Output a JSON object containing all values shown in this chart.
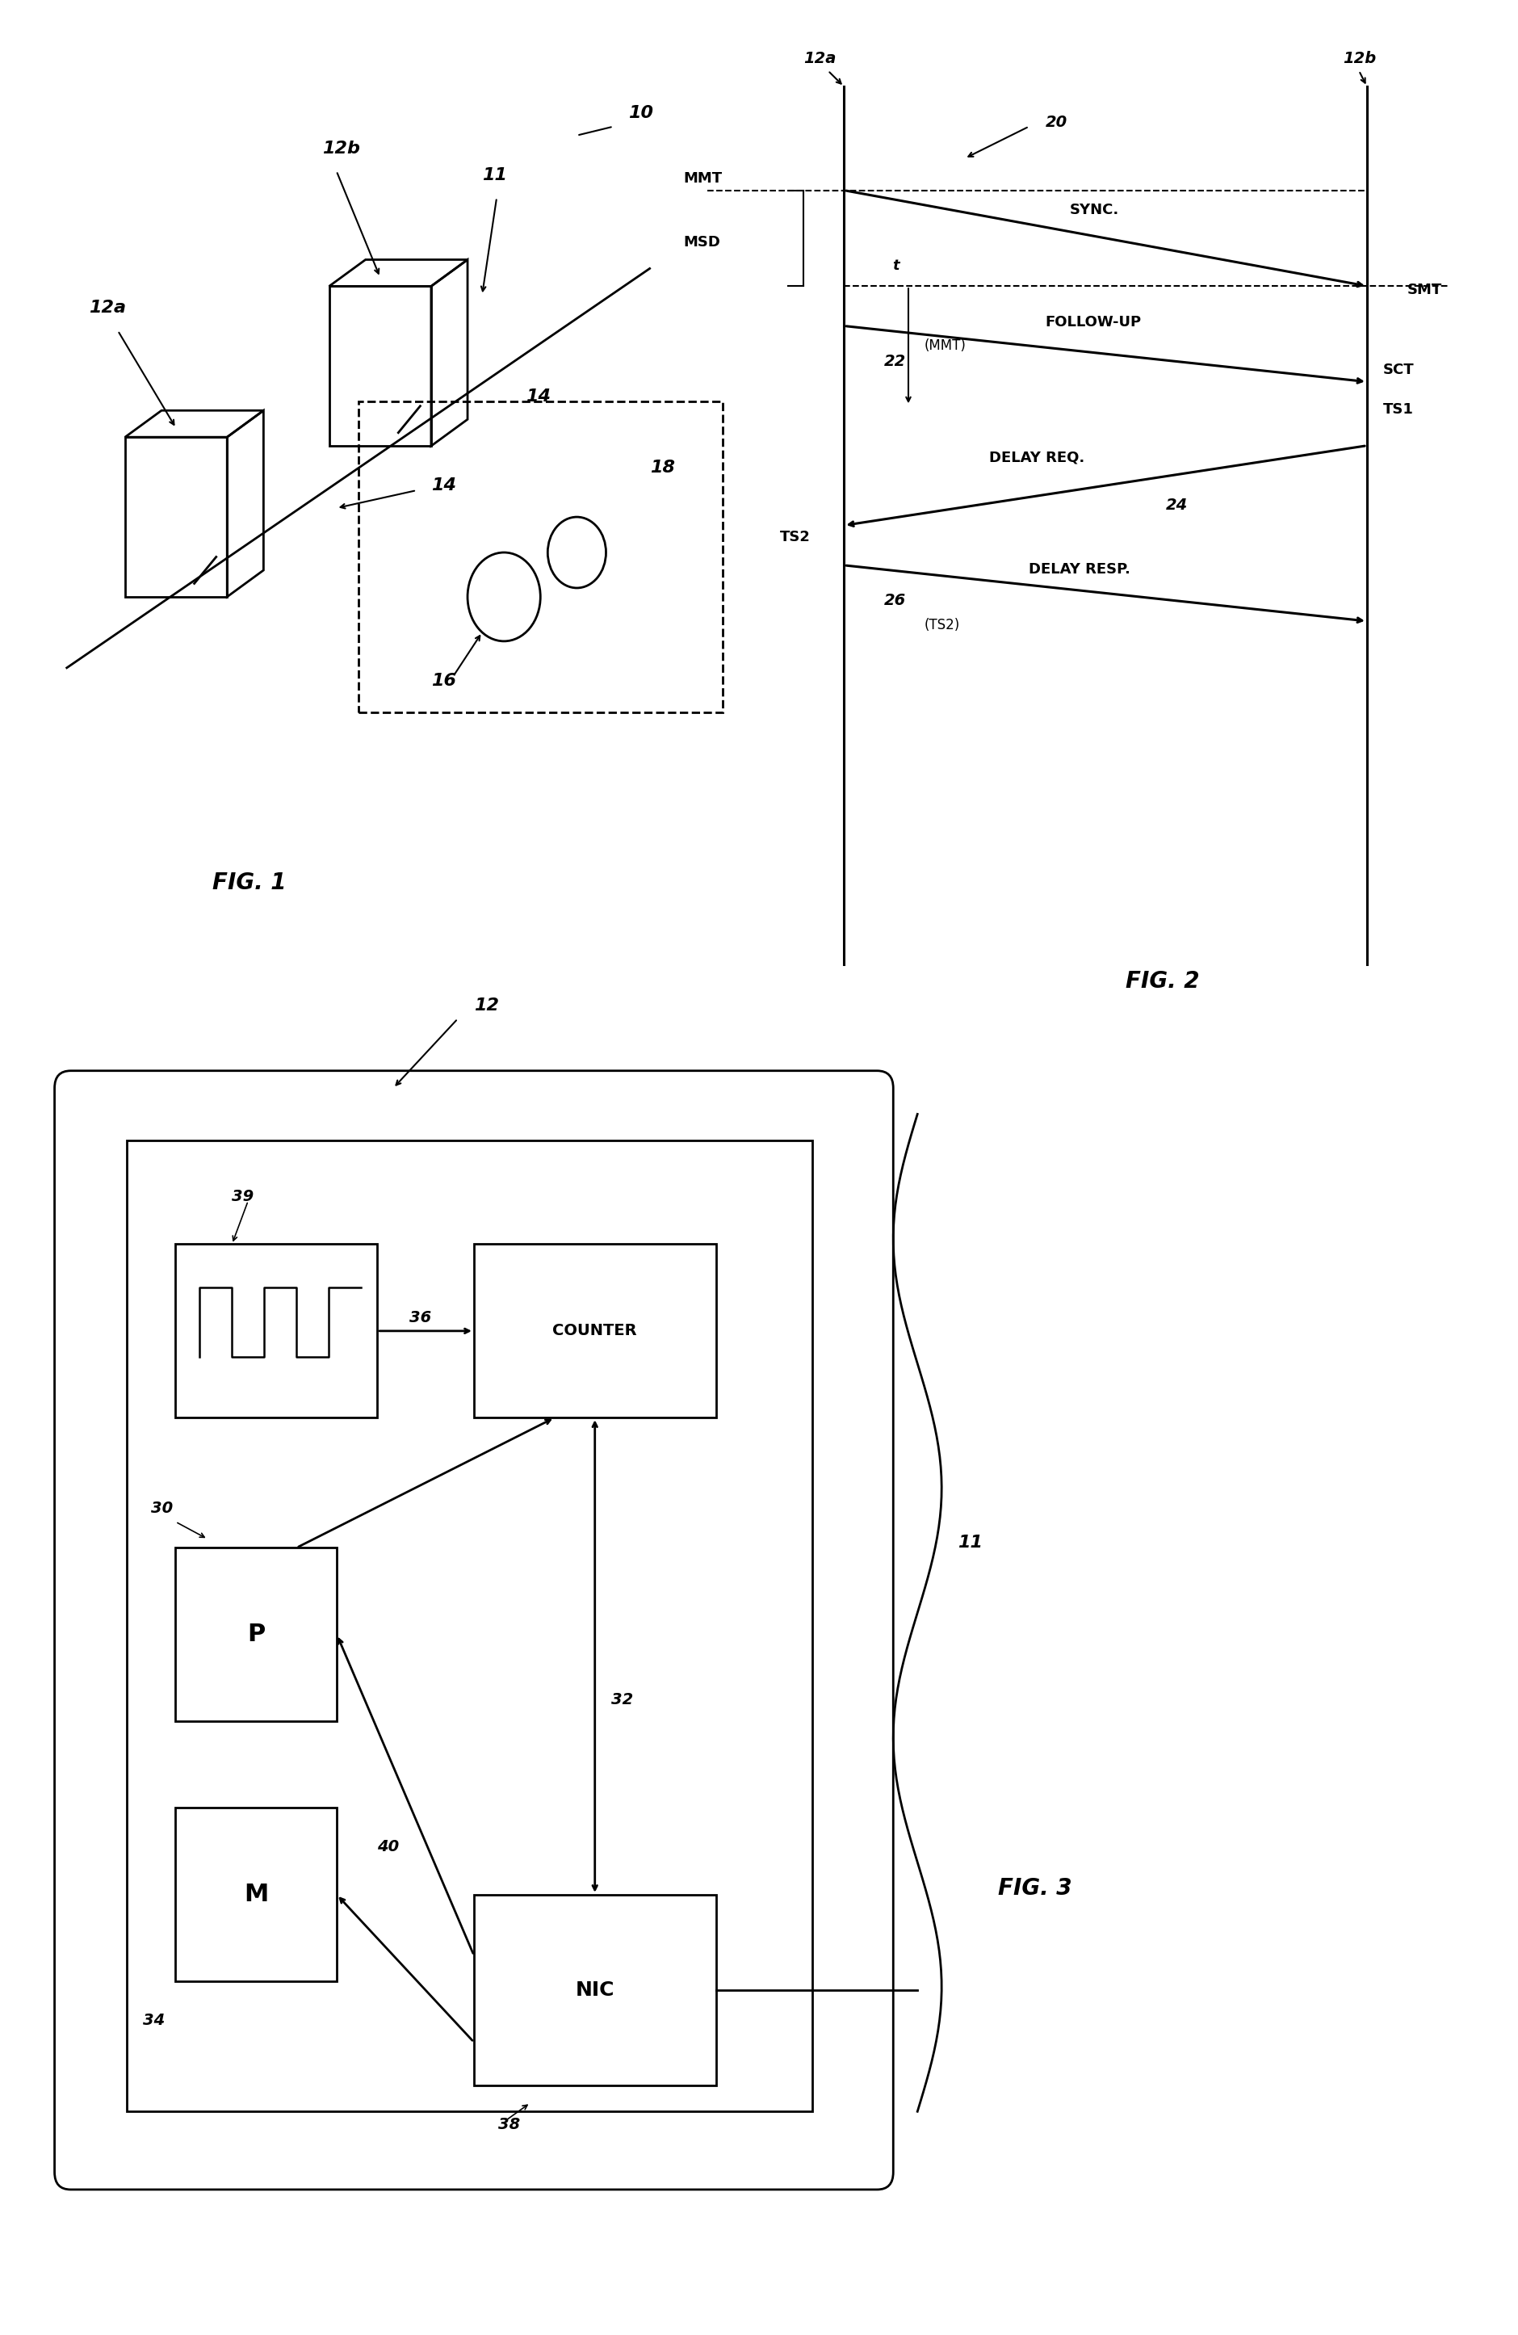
{
  "bg_color": "#ffffff",
  "fig_width": 18.8,
  "fig_height": 28.91,
  "fig1": {
    "label": "FIG. 1",
    "ref_10": "10",
    "ref_11": "11",
    "ref_12a": "12a",
    "ref_12b": "12b",
    "ref_14": "14",
    "ref_16": "16",
    "ref_18": "18"
  },
  "fig2": {
    "label": "FIG. 2",
    "ref_12a": "12a",
    "ref_12b": "12b",
    "ref_20": "20",
    "ref_22": "22",
    "ref_24": "24",
    "ref_26": "26",
    "mmt": "MMT",
    "msd": "MSD",
    "smt": "SMT",
    "sync": "SYNC.",
    "followup": "FOLLOW-UP",
    "delay_req": "DELAY REQ.",
    "delay_resp": "DELAY RESP.",
    "sct": "SCT",
    "ts1": "TS1",
    "ts2": "TS2",
    "mmt_paren": "(MMT)",
    "ts2_paren": "(TS2)",
    "t_label": "t"
  },
  "fig3": {
    "label": "FIG. 3",
    "ref_12": "12",
    "ref_11": "11",
    "ref_30": "30",
    "ref_32": "32",
    "ref_34": "34",
    "ref_36": "36",
    "ref_38": "38",
    "ref_39": "39",
    "ref_40": "40",
    "p_label": "P",
    "m_label": "M",
    "counter_label": "COUNTER",
    "nic_label": "NIC"
  }
}
